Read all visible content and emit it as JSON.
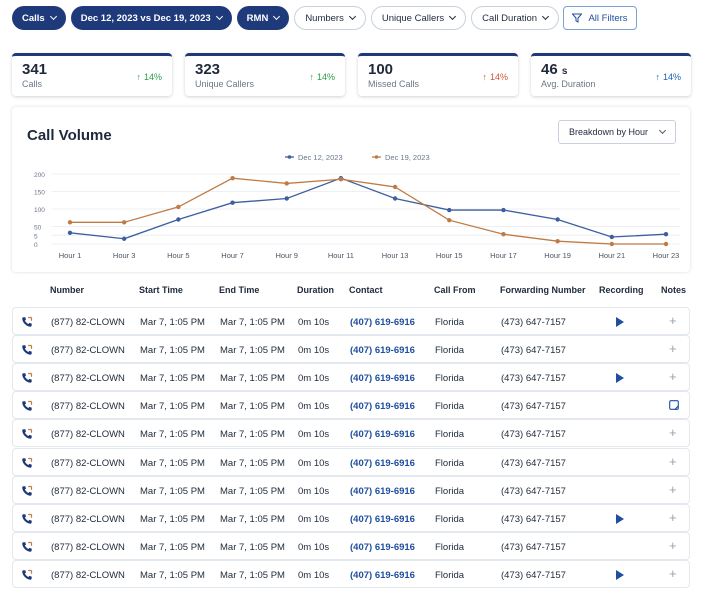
{
  "filters": [
    {
      "label": "Calls",
      "style": "dark"
    },
    {
      "label": "Dec 12, 2023 vs Dec 19, 2023",
      "style": "dark"
    },
    {
      "label": "RMN",
      "style": "dark"
    },
    {
      "label": "Numbers",
      "style": "light"
    },
    {
      "label": "Unique Callers",
      "style": "light"
    },
    {
      "label": "Call Duration",
      "style": "light"
    }
  ],
  "all_filters_label": "All Filters",
  "stats": [
    {
      "value": "341",
      "unit": "",
      "label": "Calls",
      "delta": "14%",
      "trend": "up",
      "color": "green"
    },
    {
      "value": "323",
      "unit": "",
      "label": "Unique Callers",
      "delta": "14%",
      "trend": "up",
      "color": "green"
    },
    {
      "value": "100",
      "unit": "",
      "label": "Missed Calls",
      "delta": "14%",
      "trend": "up",
      "color": "red"
    },
    {
      "value": "46",
      "unit": "s",
      "label": "Avg. Duration",
      "delta": "14%",
      "trend": "up",
      "color": "blue"
    }
  ],
  "panel": {
    "title": "Call Volume",
    "breakdown_label": "Breakdown by Hour"
  },
  "colors": {
    "series_1": "#3d5f9e",
    "series_2": "#c07a44",
    "primary": "#1f3a7a",
    "link": "#1f4f9f"
  },
  "chart_data": {
    "type": "line",
    "x": [
      "Hour 1",
      "Hour 3",
      "Hour 5",
      "Hour 7",
      "Hour 9",
      "Hour 11",
      "Hour 13",
      "Hour 15",
      "Hour 17",
      "Hour 19",
      "Hour 21",
      "Hour 23"
    ],
    "series": [
      {
        "name": "Dec 12, 2023",
        "values": [
          32,
          15,
          70,
          118,
          130,
          188,
          130,
          97,
          97,
          70,
          20,
          28
        ]
      },
      {
        "name": "Dec 19, 2023",
        "values": [
          62,
          62,
          106,
          188,
          173,
          185,
          163,
          68,
          28,
          8,
          0,
          0
        ]
      }
    ],
    "yticks": [
      "0",
      "5",
      "50",
      "100",
      "150",
      "200"
    ],
    "ylim": [
      0,
      200
    ],
    "grid": true,
    "legend": "top-center"
  },
  "table": {
    "headers": [
      "Number",
      "Start Time",
      "End Time",
      "Duration",
      "Contact",
      "Call From",
      "Forwarding Number",
      "Recording",
      "Notes"
    ],
    "rows": [
      {
        "number": "(877) 82-CLOWN",
        "start": "Mar 7, 1:05 PM",
        "end": "Mar 7, 1:05 PM",
        "duration": "0m 10s",
        "contact": "(407) 619-6916",
        "from": "Florida",
        "fwd": "(473) 647-7157",
        "recording": true,
        "note": "add"
      },
      {
        "number": "(877) 82-CLOWN",
        "start": "Mar 7, 1:05 PM",
        "end": "Mar 7, 1:05 PM",
        "duration": "0m 10s",
        "contact": "(407) 619-6916",
        "from": "Florida",
        "fwd": "(473) 647-7157",
        "recording": false,
        "note": "add"
      },
      {
        "number": "(877) 82-CLOWN",
        "start": "Mar 7, 1:05 PM",
        "end": "Mar 7, 1:05 PM",
        "duration": "0m 10s",
        "contact": "(407) 619-6916",
        "from": "Florida",
        "fwd": "(473) 647-7157",
        "recording": true,
        "note": "add"
      },
      {
        "number": "(877) 82-CLOWN",
        "start": "Mar 7, 1:05 PM",
        "end": "Mar 7, 1:05 PM",
        "duration": "0m 10s",
        "contact": "(407) 619-6916",
        "from": "Florida",
        "fwd": "(473) 647-7157",
        "recording": false,
        "note": "view"
      },
      {
        "number": "(877) 82-CLOWN",
        "start": "Mar 7, 1:05 PM",
        "end": "Mar 7, 1:05 PM",
        "duration": "0m 10s",
        "contact": "(407) 619-6916",
        "from": "Florida",
        "fwd": "(473) 647-7157",
        "recording": false,
        "note": "add"
      },
      {
        "number": "(877) 82-CLOWN",
        "start": "Mar 7, 1:05 PM",
        "end": "Mar 7, 1:05 PM",
        "duration": "0m 10s",
        "contact": "(407) 619-6916",
        "from": "Florida",
        "fwd": "(473) 647-7157",
        "recording": false,
        "note": "add"
      },
      {
        "number": "(877) 82-CLOWN",
        "start": "Mar 7, 1:05 PM",
        "end": "Mar 7, 1:05 PM",
        "duration": "0m 10s",
        "contact": "(407) 619-6916",
        "from": "Florida",
        "fwd": "(473) 647-7157",
        "recording": false,
        "note": "add"
      },
      {
        "number": "(877) 82-CLOWN",
        "start": "Mar 7, 1:05 PM",
        "end": "Mar 7, 1:05 PM",
        "duration": "0m 10s",
        "contact": "(407) 619-6916",
        "from": "Florida",
        "fwd": "(473) 647-7157",
        "recording": true,
        "note": "add"
      },
      {
        "number": "(877) 82-CLOWN",
        "start": "Mar 7, 1:05 PM",
        "end": "Mar 7, 1:05 PM",
        "duration": "0m 10s",
        "contact": "(407) 619-6916",
        "from": "Florida",
        "fwd": "(473) 647-7157",
        "recording": false,
        "note": "add"
      },
      {
        "number": "(877) 82-CLOWN",
        "start": "Mar 7, 1:05 PM",
        "end": "Mar 7, 1:05 PM",
        "duration": "0m 10s",
        "contact": "(407) 619-6916",
        "from": "Florida",
        "fwd": "(473) 647-7157",
        "recording": true,
        "note": "add"
      }
    ]
  }
}
